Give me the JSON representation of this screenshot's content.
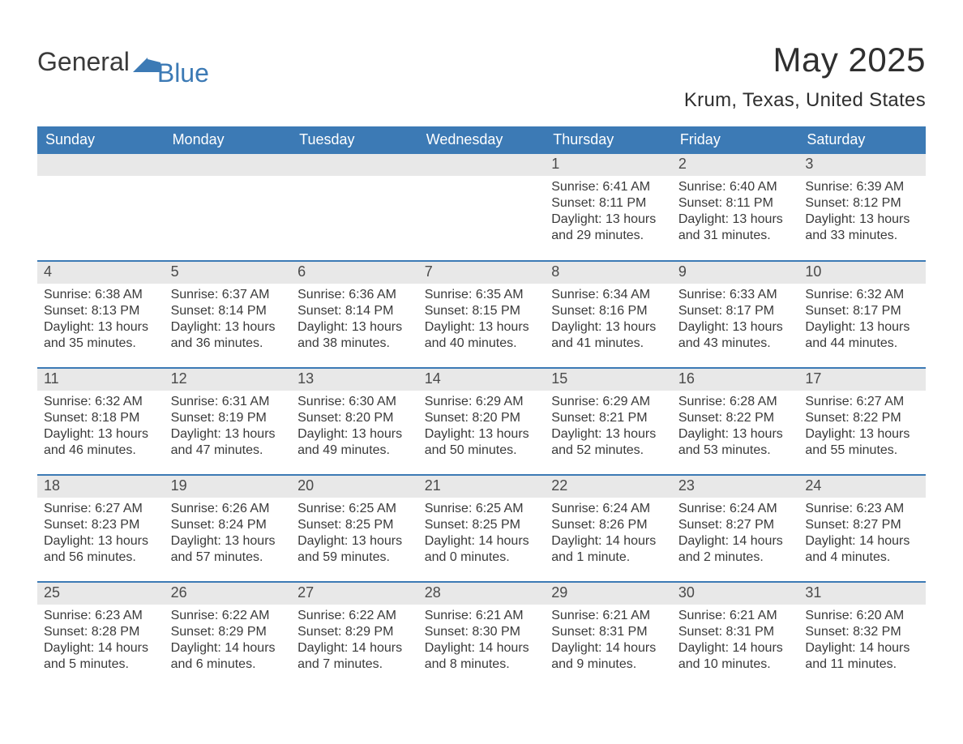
{
  "brand": {
    "word1": "General",
    "word2": "Blue",
    "accent_hex": "#3c7ab5"
  },
  "title": "May 2025",
  "location": "Krum, Texas, United States",
  "weekday_headers": [
    "Sunday",
    "Monday",
    "Tuesday",
    "Wednesday",
    "Thursday",
    "Friday",
    "Saturday"
  ],
  "colors": {
    "header_bg": "#3c7ab5",
    "header_text": "#ffffff",
    "daynum_bg": "#e8e8e8",
    "row_border": "#3c7ab5",
    "body_text": "#3a3a3a",
    "page_bg": "#ffffff"
  },
  "layout": {
    "columns": 7,
    "rows": 5,
    "first_weekday_index": 4
  },
  "weeks": [
    [
      null,
      null,
      null,
      null,
      {
        "n": "1",
        "sunrise": "6:41 AM",
        "sunset": "8:11 PM",
        "daylight": "13 hours and 29 minutes."
      },
      {
        "n": "2",
        "sunrise": "6:40 AM",
        "sunset": "8:11 PM",
        "daylight": "13 hours and 31 minutes."
      },
      {
        "n": "3",
        "sunrise": "6:39 AM",
        "sunset": "8:12 PM",
        "daylight": "13 hours and 33 minutes."
      }
    ],
    [
      {
        "n": "4",
        "sunrise": "6:38 AM",
        "sunset": "8:13 PM",
        "daylight": "13 hours and 35 minutes."
      },
      {
        "n": "5",
        "sunrise": "6:37 AM",
        "sunset": "8:14 PM",
        "daylight": "13 hours and 36 minutes."
      },
      {
        "n": "6",
        "sunrise": "6:36 AM",
        "sunset": "8:14 PM",
        "daylight": "13 hours and 38 minutes."
      },
      {
        "n": "7",
        "sunrise": "6:35 AM",
        "sunset": "8:15 PM",
        "daylight": "13 hours and 40 minutes."
      },
      {
        "n": "8",
        "sunrise": "6:34 AM",
        "sunset": "8:16 PM",
        "daylight": "13 hours and 41 minutes."
      },
      {
        "n": "9",
        "sunrise": "6:33 AM",
        "sunset": "8:17 PM",
        "daylight": "13 hours and 43 minutes."
      },
      {
        "n": "10",
        "sunrise": "6:32 AM",
        "sunset": "8:17 PM",
        "daylight": "13 hours and 44 minutes."
      }
    ],
    [
      {
        "n": "11",
        "sunrise": "6:32 AM",
        "sunset": "8:18 PM",
        "daylight": "13 hours and 46 minutes."
      },
      {
        "n": "12",
        "sunrise": "6:31 AM",
        "sunset": "8:19 PM",
        "daylight": "13 hours and 47 minutes."
      },
      {
        "n": "13",
        "sunrise": "6:30 AM",
        "sunset": "8:20 PM",
        "daylight": "13 hours and 49 minutes."
      },
      {
        "n": "14",
        "sunrise": "6:29 AM",
        "sunset": "8:20 PM",
        "daylight": "13 hours and 50 minutes."
      },
      {
        "n": "15",
        "sunrise": "6:29 AM",
        "sunset": "8:21 PM",
        "daylight": "13 hours and 52 minutes."
      },
      {
        "n": "16",
        "sunrise": "6:28 AM",
        "sunset": "8:22 PM",
        "daylight": "13 hours and 53 minutes."
      },
      {
        "n": "17",
        "sunrise": "6:27 AM",
        "sunset": "8:22 PM",
        "daylight": "13 hours and 55 minutes."
      }
    ],
    [
      {
        "n": "18",
        "sunrise": "6:27 AM",
        "sunset": "8:23 PM",
        "daylight": "13 hours and 56 minutes."
      },
      {
        "n": "19",
        "sunrise": "6:26 AM",
        "sunset": "8:24 PM",
        "daylight": "13 hours and 57 minutes."
      },
      {
        "n": "20",
        "sunrise": "6:25 AM",
        "sunset": "8:25 PM",
        "daylight": "13 hours and 59 minutes."
      },
      {
        "n": "21",
        "sunrise": "6:25 AM",
        "sunset": "8:25 PM",
        "daylight": "14 hours and 0 minutes."
      },
      {
        "n": "22",
        "sunrise": "6:24 AM",
        "sunset": "8:26 PM",
        "daylight": "14 hours and 1 minute."
      },
      {
        "n": "23",
        "sunrise": "6:24 AM",
        "sunset": "8:27 PM",
        "daylight": "14 hours and 2 minutes."
      },
      {
        "n": "24",
        "sunrise": "6:23 AM",
        "sunset": "8:27 PM",
        "daylight": "14 hours and 4 minutes."
      }
    ],
    [
      {
        "n": "25",
        "sunrise": "6:23 AM",
        "sunset": "8:28 PM",
        "daylight": "14 hours and 5 minutes."
      },
      {
        "n": "26",
        "sunrise": "6:22 AM",
        "sunset": "8:29 PM",
        "daylight": "14 hours and 6 minutes."
      },
      {
        "n": "27",
        "sunrise": "6:22 AM",
        "sunset": "8:29 PM",
        "daylight": "14 hours and 7 minutes."
      },
      {
        "n": "28",
        "sunrise": "6:21 AM",
        "sunset": "8:30 PM",
        "daylight": "14 hours and 8 minutes."
      },
      {
        "n": "29",
        "sunrise": "6:21 AM",
        "sunset": "8:31 PM",
        "daylight": "14 hours and 9 minutes."
      },
      {
        "n": "30",
        "sunrise": "6:21 AM",
        "sunset": "8:31 PM",
        "daylight": "14 hours and 10 minutes."
      },
      {
        "n": "31",
        "sunrise": "6:20 AM",
        "sunset": "8:32 PM",
        "daylight": "14 hours and 11 minutes."
      }
    ]
  ],
  "labels": {
    "sunrise": "Sunrise: ",
    "sunset": "Sunset: ",
    "daylight": "Daylight: "
  }
}
